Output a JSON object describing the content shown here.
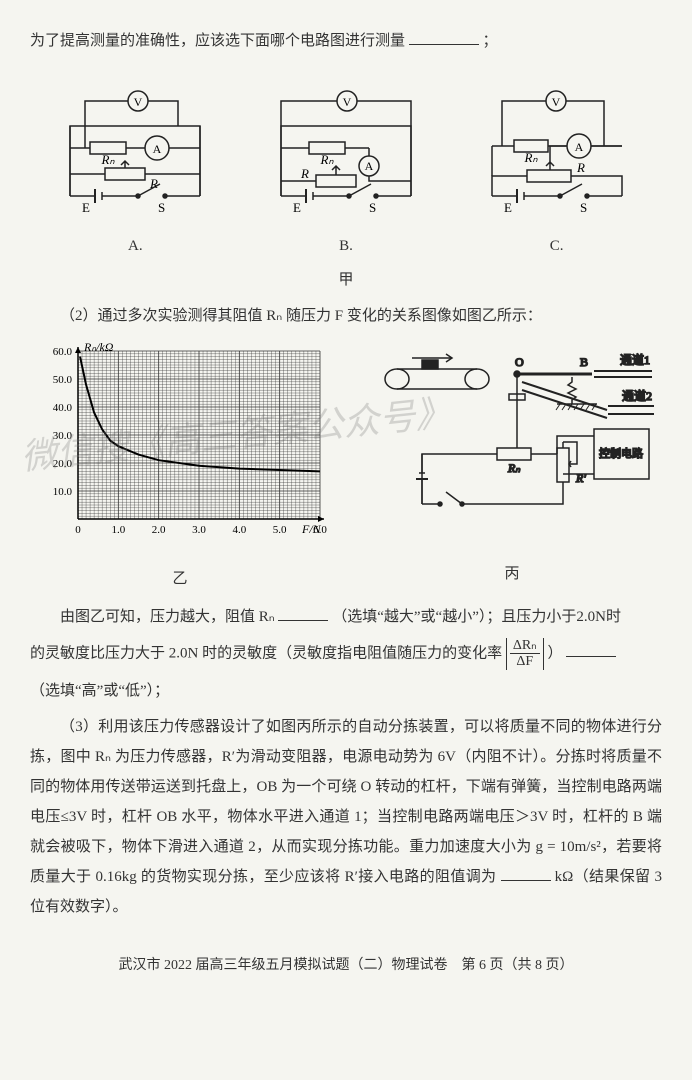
{
  "intro_text": "为了提高测量的准确性，应该选下面哪个电路图进行测量",
  "intro_tail": "；",
  "circuit": {
    "labels": [
      "A.",
      "B.",
      "C."
    ],
    "group_label": "甲",
    "components": {
      "V": "V",
      "A": "A",
      "RN": "Rₙ",
      "R": "R",
      "E": "E",
      "S": "S"
    },
    "stroke": "#222222",
    "bg": "#f5f5f0"
  },
  "sec2": {
    "lead": "（2）通过多次实验测得其阻值 Rₙ 随压力 F 变化的关系图像如图乙所示：",
    "graph": {
      "ylabel": "Rₙ/kΩ",
      "xlabel": "F/N",
      "sub_label": "乙",
      "yticks": [
        "10.0",
        "20.0",
        "30.0",
        "40.0",
        "50.0",
        "60.0"
      ],
      "xticks": [
        "0",
        "1.0",
        "2.0",
        "3.0",
        "4.0",
        "5.0",
        "6.0"
      ],
      "xlim": [
        0,
        6.0
      ],
      "ylim": [
        0,
        60.0
      ],
      "curve_points": [
        [
          0.05,
          58
        ],
        [
          0.2,
          48
        ],
        [
          0.4,
          38
        ],
        [
          0.6,
          32
        ],
        [
          0.8,
          28
        ],
        [
          1.0,
          26
        ],
        [
          1.5,
          23
        ],
        [
          2.0,
          21
        ],
        [
          3.0,
          19
        ],
        [
          4.0,
          18
        ],
        [
          5.0,
          17.5
        ],
        [
          6.0,
          17
        ]
      ],
      "grid_color": "#333333",
      "axis_color": "#000000",
      "curve_color": "#000000",
      "bg": "#f5f5f0"
    },
    "device": {
      "sub_label": "丙",
      "O": "O",
      "B": "B",
      "ch1": "通道1",
      "ch2": "通道2",
      "ctrl": "控制电路",
      "RN": "Rₙ",
      "Rprime": "R'",
      "stroke": "#222222",
      "bg": "#f5f5f0"
    },
    "text_a": "由图乙可知，压力越大，阻值 Rₙ ",
    "text_b": "（选填“越大”或“越小”）；且压力小于2.0N时",
    "text_c": "的灵敏度比压力大于 2.0N 时的灵敏度（灵敏度指电阻值随压力的变化率",
    "frac_num": "ΔRₙ",
    "frac_den": "ΔF",
    "text_d": "）",
    "text_e": "（选填“高”或“低”）；"
  },
  "sec3": {
    "p1": "（3）利用该压力传感器设计了如图丙所示的自动分拣装置，可以将质量不同的物体进行分拣，图中 Rₙ 为压力传感器，R′为滑动变阻器，电源电动势为 6V（内阻不计）。分拣时将质量不同的物体用传送带运送到托盘上，OB 为一个可绕 O 转动的杠杆，下端有弹簧，当控制电路两端电压≤3V 时，杠杆 OB 水平，物体水平进入通道 1；当控制电路两端电压＞3V 时，杠杆的 B 端就会被吸下，物体下滑进入通道 2，从而实现分拣功能。重力加速度大小为 g = 10m/s²，若要将质量大于 0.16kg 的货物实现分拣，至少应该将 R′接入电路的阻值调为",
    "unit": " kΩ（结果保留 3 位有效数字）。"
  },
  "footer": "武汉市 2022 届高三年级五月模拟试题（二）物理试卷　第 6 页（共 8 页）",
  "watermarks": {
    "w1": "微信搜《高三答案公众号》"
  }
}
